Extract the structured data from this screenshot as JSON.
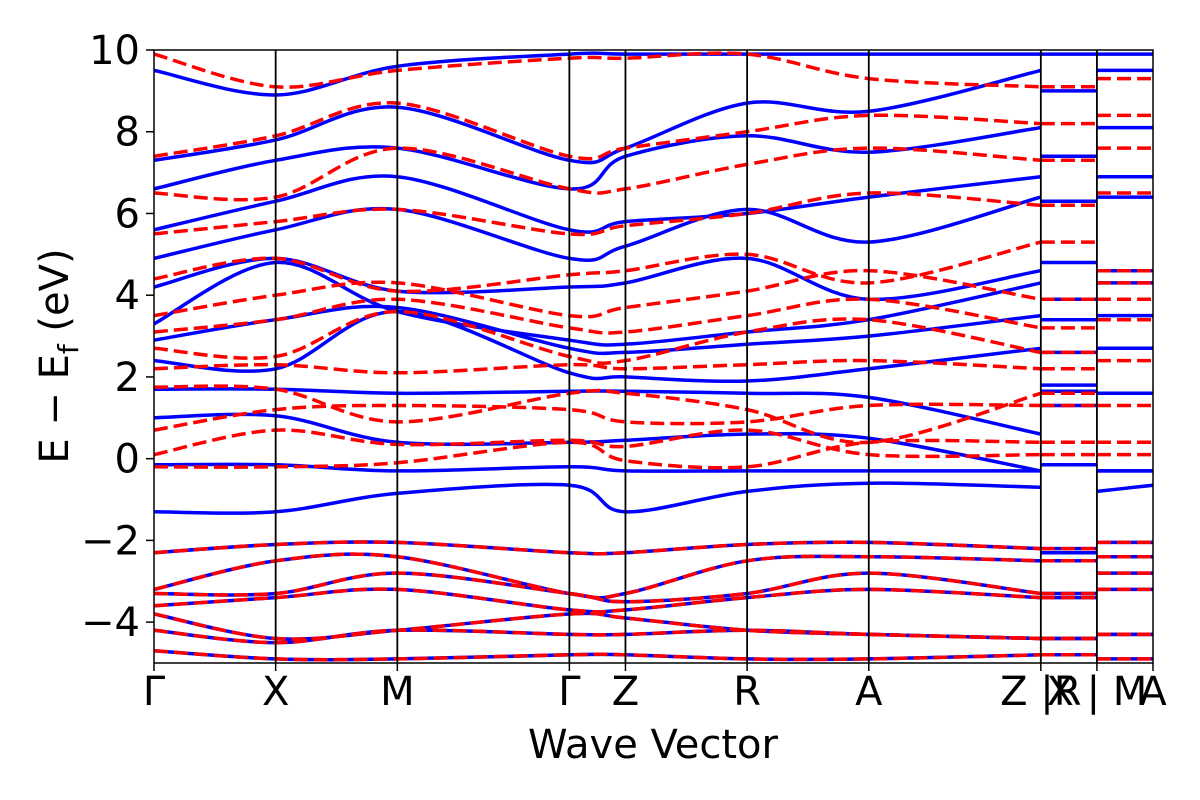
{
  "chart_data": {
    "type": "line",
    "title": "",
    "xlabel": "Wave Vector",
    "ylabel": "E − E",
    "ylabel_sub": "f",
    "ylabel_unit": " (eV)",
    "ylim": [
      -5,
      10
    ],
    "yticks": [
      {
        "value": 10,
        "label": "10"
      },
      {
        "value": 8,
        "label": "8"
      },
      {
        "value": 6,
        "label": "6"
      },
      {
        "value": 4,
        "label": "4"
      },
      {
        "value": 2,
        "label": "2"
      },
      {
        "value": 0,
        "label": "0"
      },
      {
        "value": -2,
        "label": "−2"
      },
      {
        "value": -4,
        "label": "−4"
      }
    ],
    "kpoints": [
      {
        "k": 0.0,
        "label": "Γ"
      },
      {
        "k": 1.0,
        "label": "X"
      },
      {
        "k": 2.0,
        "label": "M"
      },
      {
        "k": 3.414,
        "label": "Γ"
      },
      {
        "k": 3.875,
        "label": "Z"
      },
      {
        "k": 4.875,
        "label": "R"
      },
      {
        "k": 5.875,
        "label": "A"
      },
      {
        "k": 7.289,
        "label": "Z |R"
      },
      {
        "k": 7.75,
        "label": "X | M"
      },
      {
        "k": 8.211,
        "label": "A"
      }
    ],
    "k_range": [
      0,
      8.211
    ],
    "grid": false,
    "legend": "none",
    "series": [
      {
        "style": "solid",
        "color": "#0000ff",
        "bands": [
          [
            -1.3,
            -1.3,
            -0.85,
            -0.65,
            -1.3,
            -0.8,
            -0.6,
            -0.7,
            -2.3,
            -2.3,
            -0.8,
            -0.65
          ],
          [
            -0.15,
            -0.15,
            -0.3,
            -0.2,
            -0.3,
            -0.3,
            -0.3,
            -0.3,
            -0.15,
            -0.15,
            -0.3,
            -0.3
          ],
          [
            1.0,
            1.05,
            0.4,
            0.4,
            0.45,
            0.6,
            0.5,
            -0.3,
            1.3,
            1.3,
            -0.3,
            -0.3
          ],
          [
            1.7,
            1.7,
            1.6,
            1.65,
            1.65,
            1.6,
            1.5,
            0.6,
            1.65,
            1.65,
            1.6,
            1.6
          ],
          [
            2.4,
            2.2,
            3.6,
            2.1,
            2.0,
            1.9,
            2.2,
            2.7,
            1.8,
            1.8,
            2.7,
            2.7
          ],
          [
            2.9,
            3.4,
            3.7,
            2.7,
            2.6,
            2.8,
            3.0,
            3.5,
            2.6,
            2.6,
            3.5,
            3.5
          ],
          [
            3.3,
            4.8,
            3.6,
            2.9,
            2.8,
            3.1,
            3.4,
            4.3,
            3.4,
            3.4,
            4.3,
            4.3
          ],
          [
            4.2,
            4.9,
            4.1,
            4.2,
            4.3,
            4.9,
            3.9,
            4.6,
            3.9,
            3.9,
            4.6,
            4.6
          ],
          [
            4.9,
            5.6,
            6.1,
            4.9,
            5.2,
            6.1,
            5.3,
            6.4,
            4.8,
            4.8,
            6.4,
            6.4
          ],
          [
            5.6,
            6.3,
            6.9,
            5.6,
            5.8,
            6.0,
            6.4,
            6.9,
            6.3,
            6.3,
            6.9,
            6.9
          ],
          [
            6.6,
            7.3,
            7.6,
            6.6,
            7.4,
            7.9,
            7.5,
            8.1,
            7.4,
            7.4,
            8.1,
            8.1
          ],
          [
            7.3,
            7.8,
            8.6,
            7.3,
            7.6,
            8.7,
            8.5,
            9.5,
            9.0,
            9.0,
            9.5,
            9.5
          ],
          [
            9.5,
            8.9,
            9.6,
            9.9,
            9.9,
            9.9,
            9.9,
            9.9,
            9.9,
            9.9,
            9.9,
            9.9
          ],
          [
            -2.3,
            -2.1,
            -2.05,
            -2.3,
            -2.3,
            -2.1,
            -2.05,
            -2.2,
            -2.2,
            -2.2,
            -2.05,
            -2.05
          ],
          [
            -3.2,
            -2.5,
            -2.4,
            -3.3,
            -3.3,
            -2.5,
            -2.4,
            -2.5,
            -2.5,
            -2.5,
            -2.4,
            -2.4
          ],
          [
            -3.3,
            -3.3,
            -2.8,
            -3.3,
            -3.5,
            -3.3,
            -2.8,
            -3.3,
            -3.3,
            -3.3,
            -2.8,
            -2.8
          ],
          [
            -3.6,
            -3.4,
            -3.2,
            -3.7,
            -3.7,
            -3.4,
            -3.2,
            -3.4,
            -3.4,
            -3.4,
            -3.2,
            -3.2
          ],
          [
            -3.8,
            -4.4,
            -4.2,
            -3.8,
            -3.9,
            -4.2,
            -4.3,
            -4.4,
            -4.4,
            -4.4,
            -4.3,
            -4.3
          ],
          [
            -4.2,
            -4.5,
            -4.2,
            -4.3,
            -4.3,
            -4.2,
            -4.3,
            -4.4,
            -4.4,
            -4.4,
            -4.3,
            -4.3
          ],
          [
            -4.7,
            -4.9,
            -4.9,
            -4.8,
            -4.8,
            -4.9,
            -4.9,
            -4.8,
            -4.8,
            -4.8,
            -4.9,
            -4.9
          ]
        ]
      },
      {
        "style": "dashed",
        "color": "#ff0000",
        "bands": [
          [
            -0.2,
            -0.2,
            -0.1,
            0.4,
            -0.05,
            -0.2,
            0.4,
            0.4,
            0.4,
            0.4,
            0.4,
            0.4
          ],
          [
            0.1,
            0.7,
            0.35,
            0.45,
            0.3,
            0.7,
            0.1,
            0.1,
            0.1,
            0.1,
            0.1,
            0.1
          ],
          [
            0.7,
            1.2,
            1.3,
            1.2,
            0.9,
            0.9,
            1.3,
            1.3,
            1.3,
            1.3,
            1.3,
            1.3
          ],
          [
            1.75,
            1.7,
            0.9,
            1.6,
            1.6,
            1.2,
            0.4,
            1.6,
            1.6,
            1.6,
            0.4,
            0.4
          ],
          [
            2.2,
            2.3,
            2.1,
            2.3,
            2.2,
            2.3,
            2.4,
            2.2,
            2.2,
            2.2,
            2.4,
            2.4
          ],
          [
            2.7,
            2.5,
            3.6,
            2.5,
            2.4,
            3.1,
            3.4,
            2.6,
            2.6,
            2.6,
            3.4,
            3.4
          ],
          [
            3.1,
            3.4,
            3.9,
            3.2,
            3.1,
            3.5,
            3.9,
            3.2,
            3.2,
            3.2,
            3.9,
            3.9
          ],
          [
            3.5,
            4.0,
            4.3,
            3.5,
            3.7,
            4.1,
            4.6,
            3.9,
            3.9,
            3.9,
            4.6,
            4.6
          ],
          [
            4.4,
            4.9,
            4.1,
            4.5,
            4.6,
            5.0,
            4.3,
            5.3,
            5.3,
            5.3,
            4.3,
            4.3
          ],
          [
            5.5,
            5.8,
            6.1,
            5.5,
            5.7,
            6.0,
            6.5,
            6.2,
            6.2,
            6.2,
            6.5,
            6.5
          ],
          [
            6.5,
            6.4,
            7.6,
            6.6,
            6.6,
            7.2,
            7.6,
            7.3,
            7.3,
            7.3,
            7.6,
            7.6
          ],
          [
            7.4,
            7.9,
            8.7,
            7.4,
            7.6,
            8.0,
            8.4,
            8.2,
            8.2,
            8.2,
            8.4,
            8.4
          ],
          [
            9.9,
            9.1,
            9.5,
            9.8,
            9.8,
            9.9,
            9.3,
            9.1,
            9.1,
            9.1,
            9.3,
            9.3
          ],
          [
            -2.3,
            -2.1,
            -2.05,
            -2.3,
            -2.3,
            -2.1,
            -2.05,
            -2.2,
            -2.2,
            -2.2,
            -2.05,
            -2.05
          ],
          [
            -3.2,
            -2.5,
            -2.4,
            -3.3,
            -3.3,
            -2.5,
            -2.4,
            -2.5,
            -2.5,
            -2.5,
            -2.4,
            -2.4
          ],
          [
            -3.3,
            -3.3,
            -2.8,
            -3.3,
            -3.5,
            -3.3,
            -2.8,
            -3.3,
            -3.3,
            -3.3,
            -2.8,
            -2.8
          ],
          [
            -3.6,
            -3.4,
            -3.2,
            -3.7,
            -3.7,
            -3.4,
            -3.2,
            -3.4,
            -3.4,
            -3.4,
            -3.2,
            -3.2
          ],
          [
            -3.8,
            -4.4,
            -4.2,
            -3.8,
            -3.9,
            -4.2,
            -4.3,
            -4.4,
            -4.4,
            -4.4,
            -4.3,
            -4.3
          ],
          [
            -4.2,
            -4.5,
            -4.2,
            -4.3,
            -4.3,
            -4.2,
            -4.3,
            -4.4,
            -4.4,
            -4.4,
            -4.3,
            -4.3
          ],
          [
            -4.7,
            -4.9,
            -4.9,
            -4.8,
            -4.8,
            -4.9,
            -4.9,
            -4.8,
            -4.8,
            -4.8,
            -4.9,
            -4.9
          ]
        ]
      }
    ],
    "band_k": [
      0.0,
      1.0,
      2.0,
      3.414,
      3.875,
      4.875,
      5.875,
      7.289,
      7.29,
      7.75,
      7.751,
      8.211
    ]
  }
}
